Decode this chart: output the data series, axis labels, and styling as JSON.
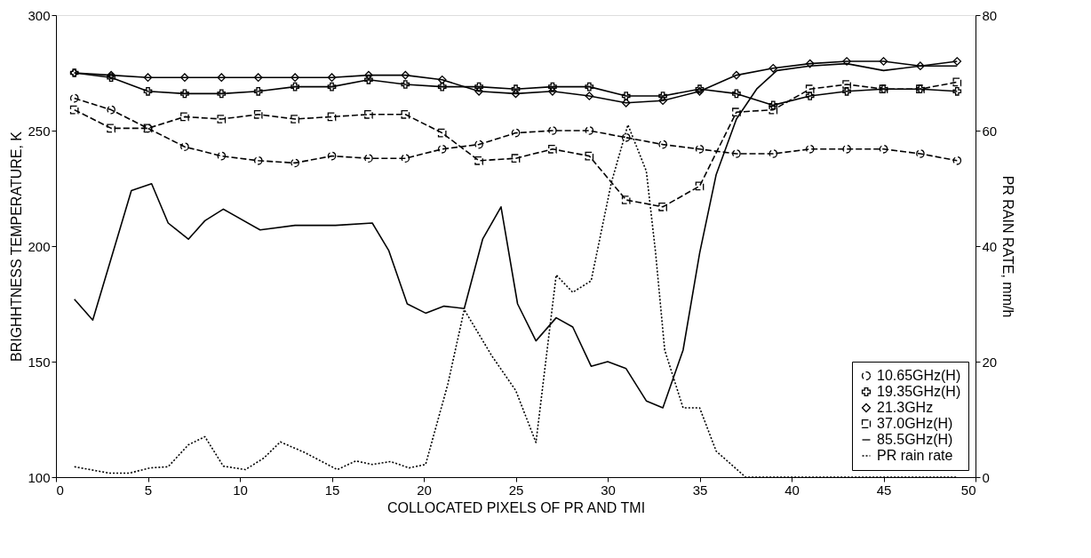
{
  "chart_data": {
    "type": "line",
    "xlabel": "COLLOCATED PIXELS OF PR AND TMI",
    "ylabel": "BRIGHHTNESS TEMPERATURE, K",
    "y2label": "PR RAIN RATE, mm/h",
    "xlim": [
      0,
      50
    ],
    "xticks": [
      0,
      5,
      10,
      15,
      20,
      25,
      30,
      35,
      40,
      45,
      50
    ],
    "ylim": [
      100,
      300
    ],
    "yticks": [
      100,
      150,
      200,
      250,
      300
    ],
    "y2lim": [
      0,
      80
    ],
    "y2ticks": [
      0,
      20,
      40,
      60,
      80
    ],
    "grid": false,
    "legend": "bottom right",
    "series": [
      {
        "name": "10.65GHz(H)",
        "color": "#000000",
        "marker": "circle",
        "line_style": "dashed",
        "x": [
          1,
          3,
          5,
          7,
          9,
          11,
          13,
          15,
          17,
          19,
          21,
          23,
          25,
          27,
          29,
          31,
          33,
          35,
          37,
          39,
          41,
          43,
          45,
          47,
          49
        ],
        "values": [
          264,
          259,
          251,
          243,
          239,
          237,
          236,
          239,
          238,
          238,
          242,
          244,
          249,
          250,
          250,
          247,
          244,
          242,
          240,
          240,
          242,
          242,
          242,
          240,
          237
        ]
      },
      {
        "name": "19.35GHz(H)",
        "color": "#000000",
        "marker": "cross",
        "line_style": "solid",
        "x": [
          1,
          3,
          5,
          7,
          9,
          11,
          13,
          15,
          17,
          19,
          21,
          23,
          25,
          27,
          29,
          31,
          33,
          35,
          37,
          39,
          41,
          43,
          45,
          47,
          49
        ],
        "values": [
          275,
          273,
          267,
          266,
          266,
          267,
          269,
          269,
          272,
          270,
          269,
          269,
          268,
          269,
          269,
          265,
          265,
          268,
          266,
          261,
          265,
          267,
          268,
          268,
          267
        ]
      },
      {
        "name": "21.3GHz",
        "color": "#000000",
        "marker": "diamond",
        "line_style": "solid",
        "x": [
          1,
          3,
          5,
          7,
          9,
          11,
          13,
          15,
          17,
          19,
          21,
          23,
          25,
          27,
          29,
          31,
          33,
          35,
          37,
          39,
          41,
          43,
          45,
          47,
          49
        ],
        "values": [
          275,
          274,
          273,
          273,
          273,
          273,
          273,
          273,
          274,
          274,
          272,
          267,
          266,
          267,
          265,
          262,
          263,
          267,
          274,
          277,
          279,
          280,
          280,
          278,
          280
        ]
      },
      {
        "name": "37.0GHz(H)",
        "color": "#000000",
        "marker": "square",
        "line_style": "dashed",
        "x": [
          1,
          3,
          5,
          7,
          9,
          11,
          13,
          15,
          17,
          19,
          21,
          23,
          25,
          27,
          29,
          31,
          33,
          35,
          37,
          39,
          41,
          43,
          45,
          47,
          49
        ],
        "values": [
          259,
          251,
          251,
          256,
          255,
          257,
          255,
          256,
          257,
          257,
          249,
          237,
          238,
          242,
          239,
          220,
          217,
          226,
          258,
          259,
          268,
          270,
          268,
          268,
          271
        ]
      },
      {
        "name": "85.5GHz(H)",
        "color": "#000000",
        "marker": "none",
        "line_style": "solid",
        "x": [
          1,
          2,
          4.1,
          5.2,
          6.1,
          7.2,
          8.1,
          9.1,
          11.1,
          13,
          15.2,
          17.2,
          18.1,
          19.1,
          20.1,
          21.1,
          22.2,
          23.2,
          24.2,
          25.1,
          26.1,
          27.2,
          28.1,
          29.1,
          30,
          31,
          32.1,
          33,
          34.1,
          35,
          35.9,
          37,
          38.1,
          39.2,
          41,
          43,
          45,
          47,
          49
        ],
        "values": [
          177,
          168,
          224,
          227,
          210,
          203,
          211,
          216,
          207,
          209,
          209,
          210,
          198,
          175,
          171,
          174,
          173,
          203,
          217,
          175,
          159,
          169,
          165,
          148,
          150,
          147,
          133,
          130,
          155,
          197,
          231,
          255,
          268,
          276,
          278,
          279,
          276,
          278,
          278
        ]
      },
      {
        "name": "PR rain rate",
        "color": "#000000",
        "marker": "none",
        "line_style": "dotted",
        "axis": "y2",
        "x": [
          1,
          2.9,
          4,
          5.1,
          6.1,
          7.2,
          8.1,
          9.1,
          10.3,
          11.3,
          12.2,
          13.5,
          15.3,
          16.3,
          17.2,
          18.2,
          19.2,
          20.1,
          21.3,
          22.2,
          23.7,
          25,
          26.1,
          27.2,
          28.1,
          29.1,
          30.2,
          31.1,
          32.1,
          32.6,
          33.1,
          34.1,
          35,
          35.9,
          37.5,
          49
        ],
        "values": [
          1.8,
          0.7,
          0.7,
          1.6,
          1.8,
          5.6,
          7,
          1.9,
          1.3,
          3.3,
          6.1,
          4.3,
          1.3,
          2.8,
          2.2,
          2.7,
          1.6,
          2.2,
          16,
          29,
          21,
          15,
          6,
          35,
          32,
          34,
          51,
          61,
          53,
          39,
          22,
          12,
          12,
          4.5,
          0,
          0
        ]
      }
    ]
  }
}
